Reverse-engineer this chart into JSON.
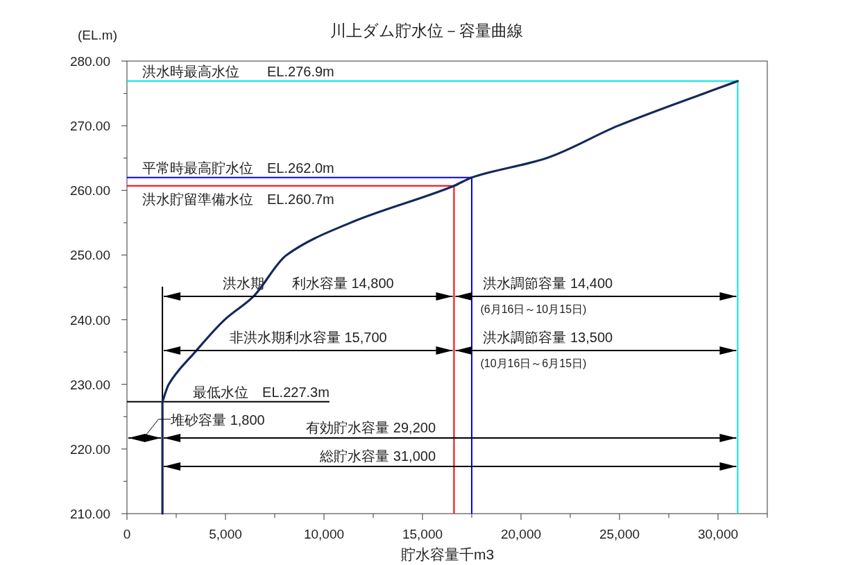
{
  "chart_data": {
    "type": "line",
    "title": "川上ダム貯水位－容量曲線",
    "xlabel": "貯水容量千m3",
    "ylabel": "(EL.m)",
    "x": [
      1800,
      1800,
      2120,
      3460,
      4960,
      6420,
      8100,
      11350,
      16600,
      17500,
      21300,
      24930,
      31000
    ],
    "series": [
      {
        "color": "#15295c",
        "values": [
          210,
          227.3,
          230,
          235,
          240,
          243.6,
          250,
          255,
          260.7,
          262,
          265,
          270,
          276.9
        ]
      }
    ],
    "xlim": [
      0,
      32500
    ],
    "ylim": [
      210,
      280
    ],
    "xticks": [
      {
        "value": 0,
        "label": "0"
      },
      {
        "value": 2500,
        "label": null
      },
      {
        "value": 5000,
        "label": "5,000"
      },
      {
        "value": 7500,
        "label": null
      },
      {
        "value": 10000,
        "label": "10,000"
      },
      {
        "value": 12500,
        "label": null
      },
      {
        "value": 15000,
        "label": "15,000"
      },
      {
        "value": 17500,
        "label": null
      },
      {
        "value": 20000,
        "label": "20,000"
      },
      {
        "value": 22500,
        "label": null
      },
      {
        "value": 25000,
        "label": "25,000"
      },
      {
        "value": 27500,
        "label": null
      },
      {
        "value": 30000,
        "label": "30,000"
      },
      {
        "value": 32500,
        "label": null
      }
    ],
    "yticks": [
      {
        "value": 210,
        "label": "210.00"
      },
      {
        "value": 215,
        "label": null
      },
      {
        "value": 220,
        "label": "220.00"
      },
      {
        "value": 225,
        "label": null
      },
      {
        "value": 230,
        "label": "230.00"
      },
      {
        "value": 235,
        "label": null
      },
      {
        "value": 240,
        "label": "240.00"
      },
      {
        "value": 245,
        "label": null
      },
      {
        "value": 250,
        "label": "250.00"
      },
      {
        "value": 255,
        "label": null
      },
      {
        "value": 260,
        "label": "260.00"
      },
      {
        "value": 265,
        "label": null
      },
      {
        "value": 270,
        "label": "270.00"
      },
      {
        "value": 275,
        "label": null
      },
      {
        "value": 280,
        "label": "280.00"
      }
    ],
    "marker": "none",
    "ref_lines": [
      {
        "axis": "y",
        "value": 276.9,
        "label": "洪水時最高水位　　EL.276.9m",
        "color": "#00e5e5"
      },
      {
        "axis": "y",
        "value": 262.0,
        "label": "平常時最高貯水位　EL.262.0m",
        "color": "#0000ff"
      },
      {
        "axis": "y",
        "value": 260.7,
        "label": "洪水貯留準備水位　EL.260.7m",
        "color": "#ff0000"
      },
      {
        "axis": "y",
        "value": 227.3,
        "label": "最低水位　EL.227.3m",
        "color": "#000000"
      },
      {
        "axis": "x",
        "value": 31000,
        "color": "#00e5e5"
      },
      {
        "axis": "x",
        "value": 17500,
        "color": "#0000ff"
      },
      {
        "axis": "x",
        "value": 16600,
        "color": "#ff0000"
      },
      {
        "axis": "x",
        "value": 1800,
        "color": "#000000"
      }
    ],
    "annotations": [
      "洪水期　　利水容量 14,800",
      "洪水調節容量 14,400\n(6月16日～10月15日)",
      "非洪水期利水容量 15,700",
      "洪水調節容量 13,500\n(10月16日～6月15日)",
      "堆砂容量 1,800",
      "有効貯水容量 29,200",
      "総貯水容量 31,000"
    ]
  }
}
